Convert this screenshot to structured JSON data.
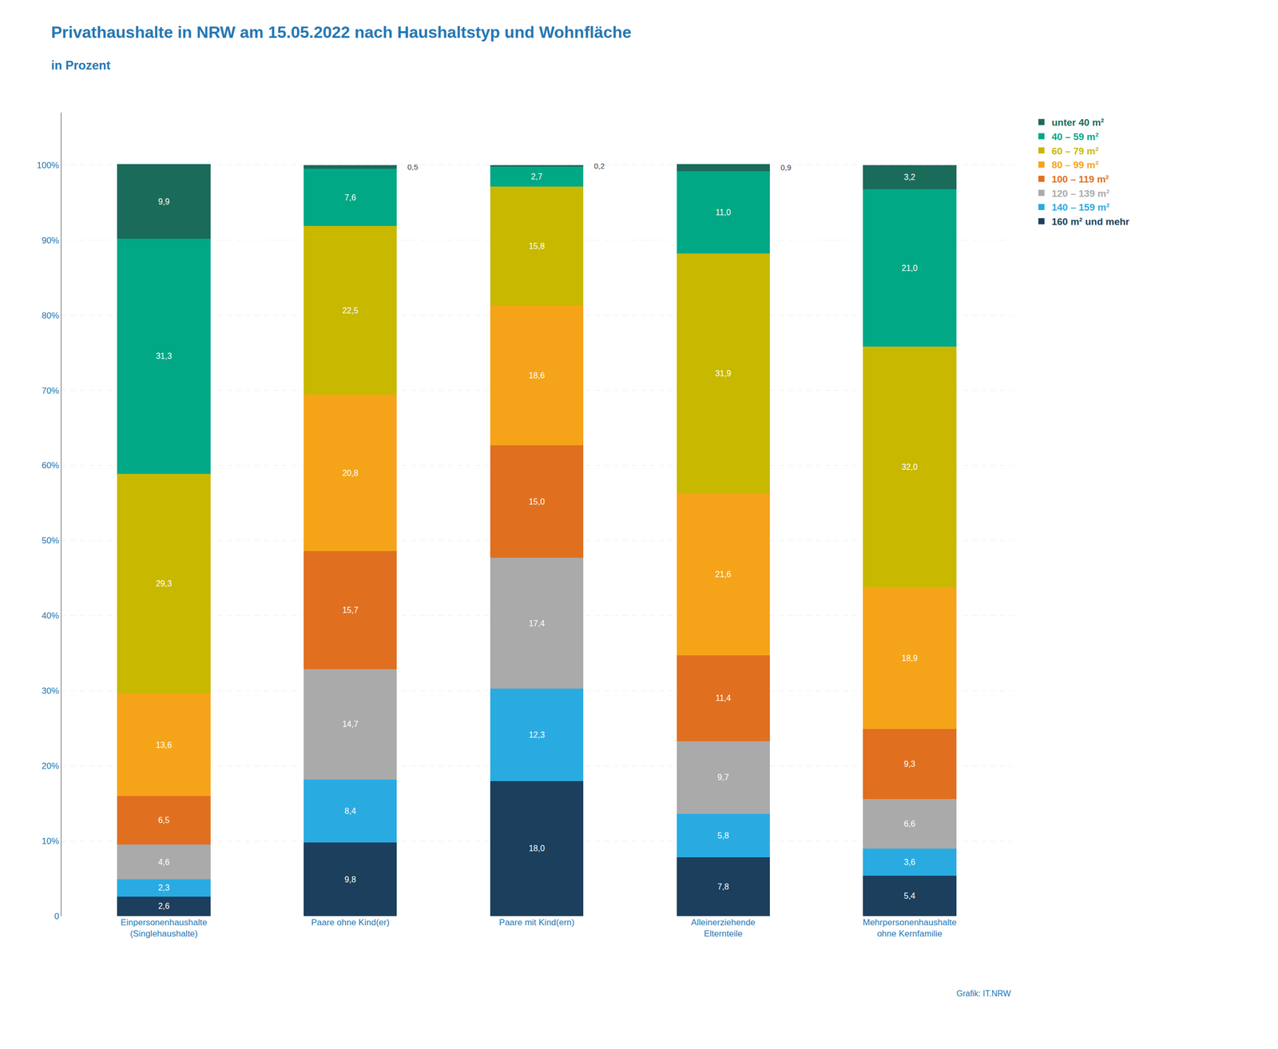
{
  "chart_data": {
    "type": "bar",
    "stacked": true,
    "title": "Privathaushalte in NRW am 15.05.2022 nach Haushaltstyp und Wohnfläche",
    "subtitle": "in Prozent",
    "annotations": [
      "Grafik: IT.NRW"
    ],
    "categories": [
      "Einpersonenhaushalte\n(Singlehaushalte)",
      "Paare ohne Kind(er)",
      "Paare mit Kind(ern)",
      "Alleinerziehende\nElternteile",
      "Mehrpersonenhaushalte\nohne Kernfamilie"
    ],
    "series": [
      {
        "name": "160 m² und mehr",
        "color": "#1B3F5C",
        "values": [
          2.6,
          9.8,
          18.0,
          7.8,
          5.4
        ],
        "value_labels": [
          "2,6",
          "9,8",
          "18,0",
          "7,8",
          "5,4"
        ]
      },
      {
        "name": "140 – 159 m²",
        "color": "#29ABE2",
        "values": [
          2.3,
          8.4,
          12.3,
          5.8,
          3.6
        ],
        "value_labels": [
          "2,3",
          "8,4",
          "12,3",
          "5,8",
          "3,6"
        ]
      },
      {
        "name": "120 – 139 m²",
        "color": "#AAAAAA",
        "values": [
          4.6,
          14.7,
          17.4,
          9.7,
          6.6
        ],
        "value_labels": [
          "4,6",
          "14,7",
          "17,4",
          "9,7",
          "6,6"
        ]
      },
      {
        "name": "100 – 119 m²",
        "color": "#E07020",
        "values": [
          6.5,
          15.7,
          15.0,
          11.4,
          9.3
        ],
        "value_labels": [
          "6,5",
          "15,7",
          "15,0",
          "11,4",
          "9,3"
        ]
      },
      {
        "name": "80 – 99 m²",
        "color": "#F5A41A",
        "values": [
          13.6,
          20.8,
          18.6,
          21.6,
          18.9
        ],
        "value_labels": [
          "13,6",
          "20,8",
          "18,6",
          "21,6",
          "18,9"
        ]
      },
      {
        "name": "60 – 79 m²",
        "color": "#C8B800",
        "values": [
          29.3,
          22.5,
          15.8,
          31.9,
          32.0
        ],
        "value_labels": [
          "29,3",
          "22,5",
          "15,8",
          "31,9",
          "32,0"
        ]
      },
      {
        "name": "40 – 59 m²",
        "color": "#00A886",
        "values": [
          31.3,
          7.6,
          2.7,
          11.0,
          21.0
        ],
        "value_labels": [
          "31,3",
          "7,6",
          "2,7",
          "11,0",
          "21,0"
        ]
      },
      {
        "name": "unter 40 m²",
        "color": "#1A6B5A",
        "values": [
          9.9,
          0.5,
          0.2,
          0.9,
          3.2
        ],
        "value_labels": [
          "9,9",
          "0,5",
          "0,2",
          "0,9",
          "3,2"
        ]
      }
    ],
    "ylim": [
      0,
      107
    ],
    "yticks": [
      0,
      {
        "value": 10,
        "label": "10%"
      },
      {
        "value": 20,
        "label": "20%"
      },
      {
        "value": 30,
        "label": "30%"
      },
      {
        "value": 40,
        "label": "40%"
      },
      {
        "value": 50,
        "label": "50%"
      },
      {
        "value": 60,
        "label": "60%"
      },
      {
        "value": 70,
        "label": "70%"
      },
      {
        "value": 80,
        "label": "80%"
      },
      {
        "value": 90,
        "label": "90%"
      },
      {
        "value": 100,
        "label": "100%"
      }
    ],
    "grid": true,
    "legend": "right",
    "data_labels": true
  }
}
